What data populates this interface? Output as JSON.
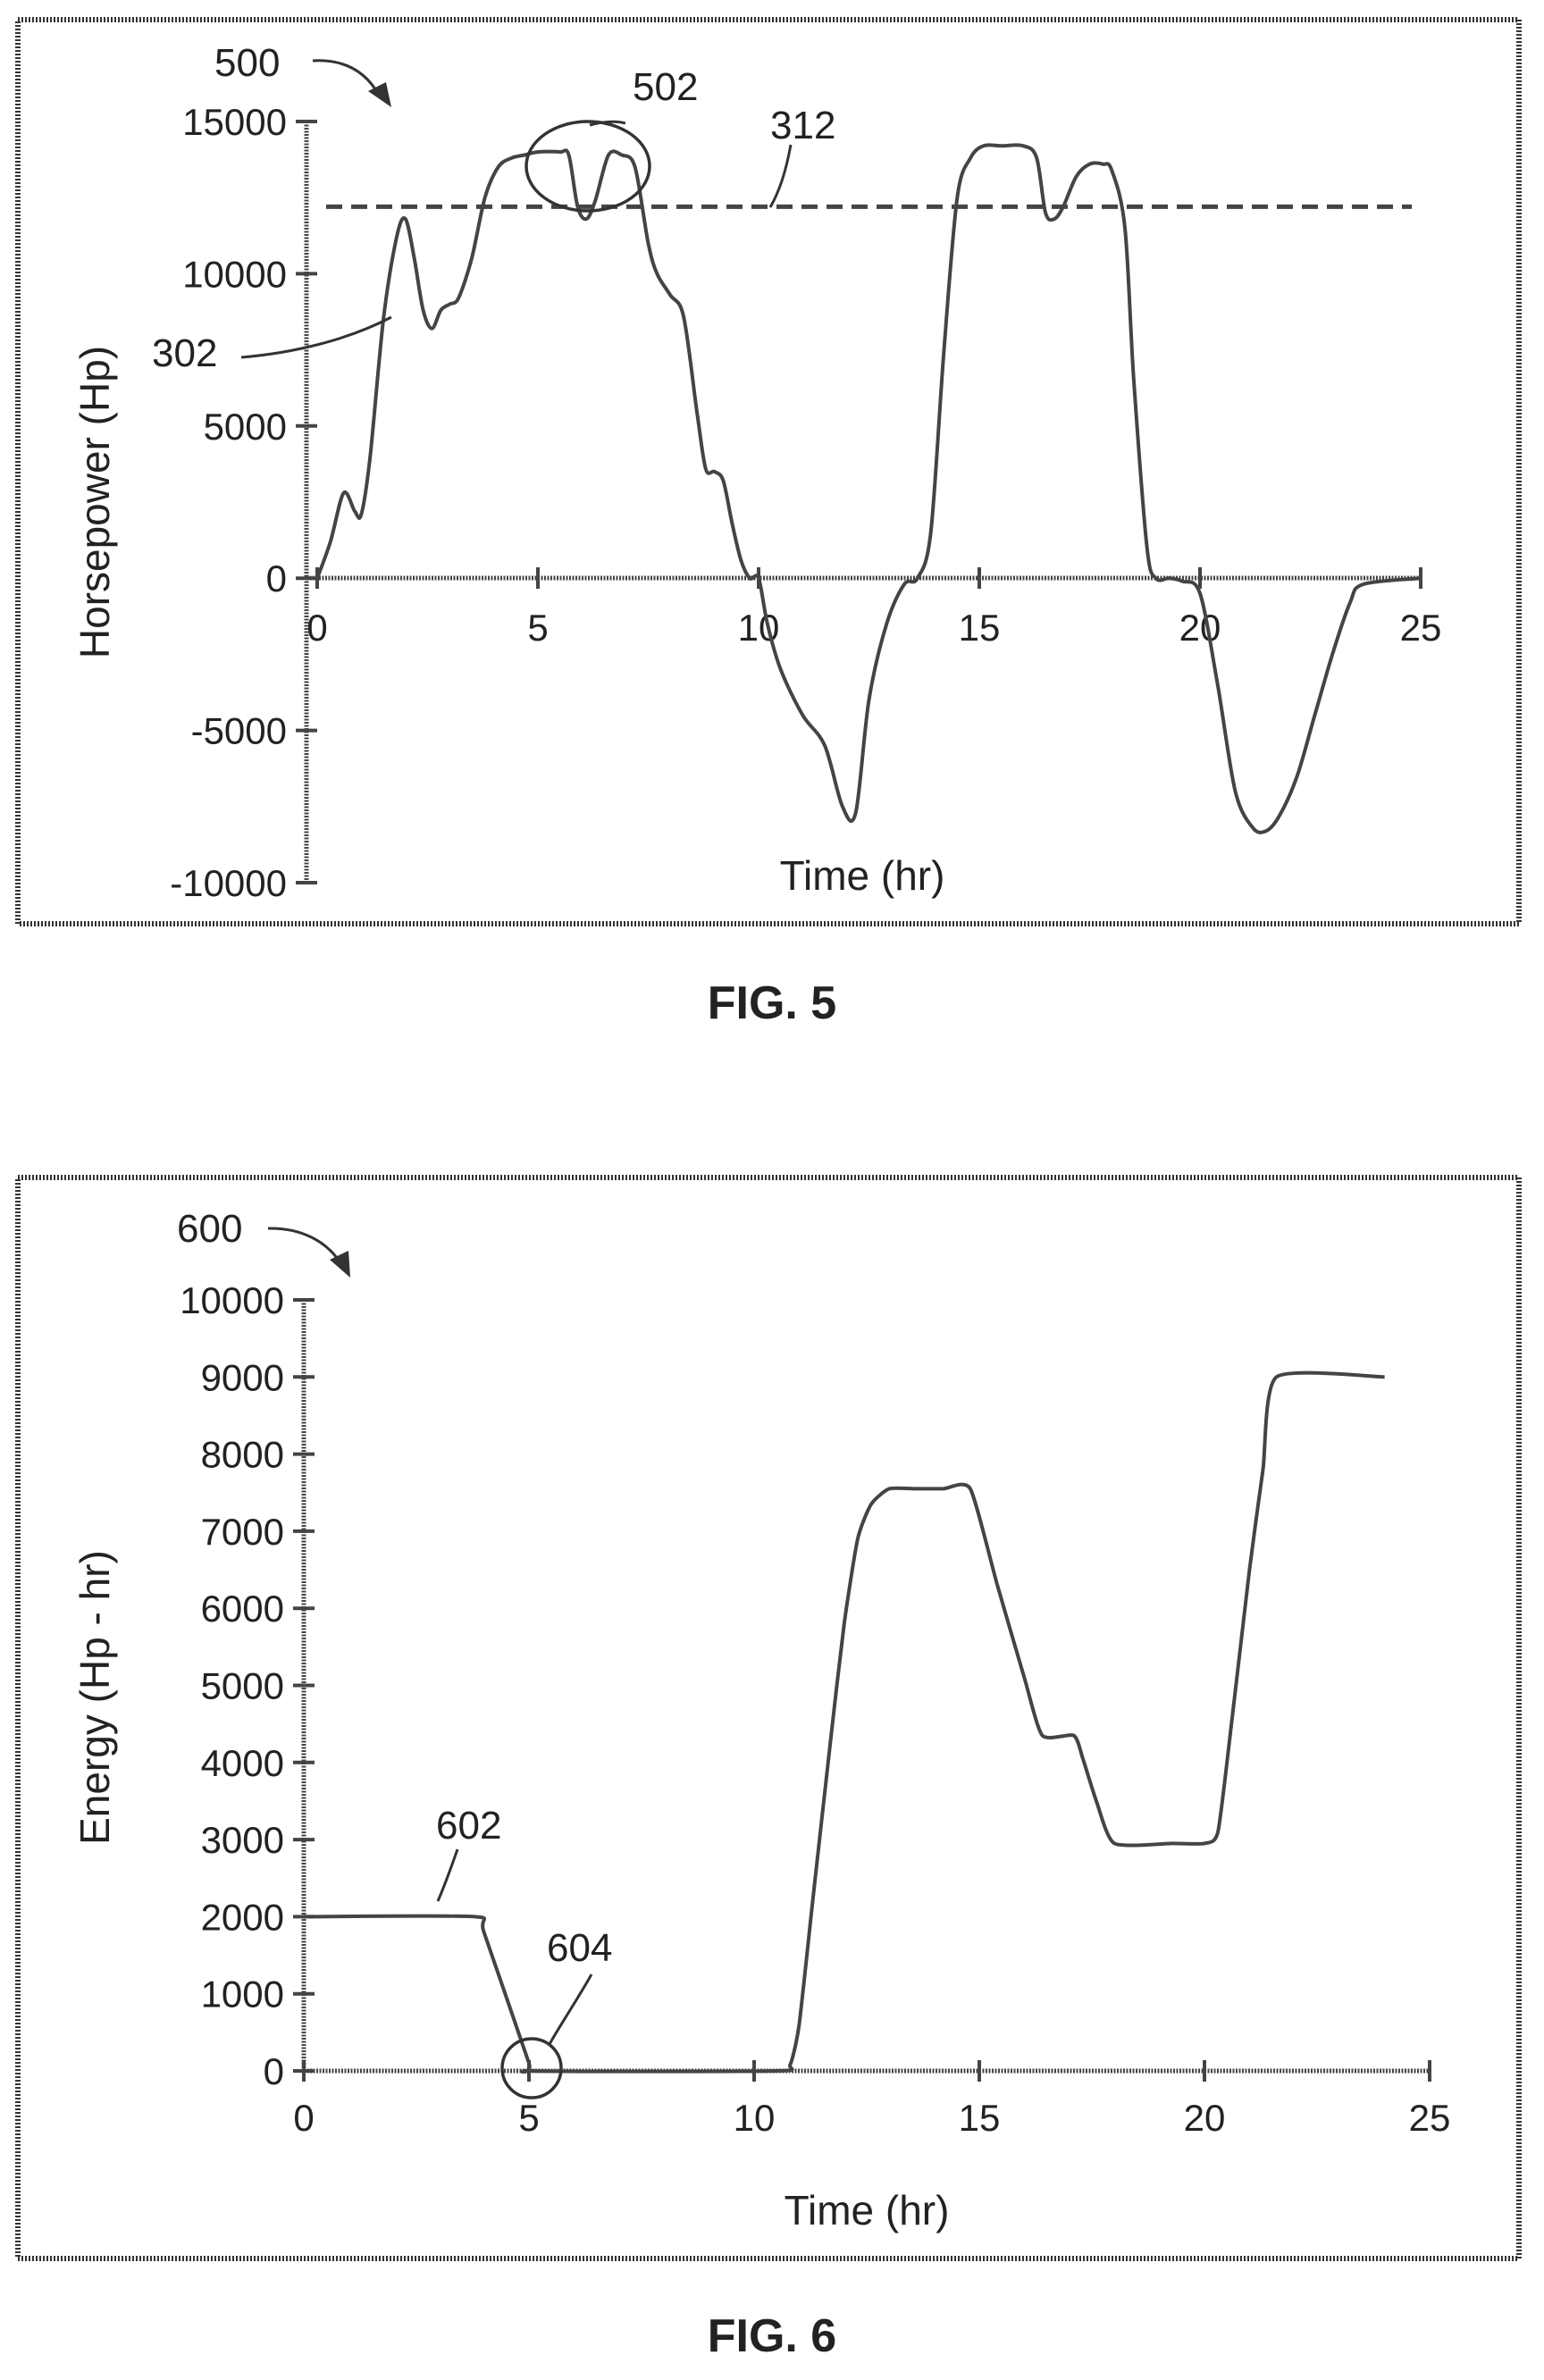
{
  "chart_data": [
    {
      "type": "line",
      "caption": "FIG. 5",
      "ref": "500",
      "xlabel": "Time (hr)",
      "ylabel": "Horsepower (Hp)",
      "xlim": [
        0,
        25
      ],
      "ylim": [
        -10000,
        15000
      ],
      "xticks": [
        0,
        5,
        10,
        15,
        20,
        25
      ],
      "yticks": [
        -10000,
        -5000,
        0,
        5000,
        10000,
        15000
      ],
      "threshold": {
        "label": "312",
        "y": 12200,
        "x_range": [
          0,
          25
        ]
      },
      "series": [
        {
          "label": "302",
          "x": [
            0,
            0.3,
            0.6,
            0.85,
            1.0,
            1.2,
            1.5,
            1.8,
            2.0,
            2.2,
            2.4,
            2.6,
            2.8,
            3.0,
            3.2,
            3.5,
            3.8,
            4.1,
            4.4,
            4.7,
            5.0,
            5.5,
            5.7,
            5.9,
            6.1,
            6.3,
            6.6,
            6.9,
            7.2,
            7.5,
            7.7,
            8.0,
            8.3,
            8.6,
            8.8,
            9.0,
            9.2,
            9.4,
            9.6,
            9.8,
            10.0,
            10.2,
            10.5,
            11.0,
            11.5,
            11.9,
            12.2,
            12.5,
            12.9,
            13.3,
            13.6,
            13.9,
            14.2,
            14.5,
            14.8,
            15.1,
            15.5,
            16.0,
            16.3,
            16.5,
            16.7,
            16.9,
            17.2,
            17.5,
            17.8,
            18.0,
            18.3,
            18.5,
            18.8,
            19.0,
            19.3,
            19.6,
            20.0,
            20.4,
            20.8,
            21.2,
            21.5,
            21.8,
            22.2,
            22.6,
            23.0,
            23.4,
            23.7,
            25.0
          ],
          "y": [
            0,
            1200,
            2800,
            2200,
            2100,
            4000,
            8500,
            11200,
            11800,
            10500,
            8800,
            8200,
            8800,
            9000,
            9200,
            10500,
            12500,
            13500,
            13800,
            13900,
            14000,
            14000,
            13900,
            12200,
            11800,
            12400,
            13900,
            13900,
            13500,
            11000,
            10000,
            9300,
            8600,
            5500,
            3600,
            3500,
            3200,
            1800,
            600,
            0,
            0,
            -1500,
            -3000,
            -4500,
            -5500,
            -7500,
            -7700,
            -4000,
            -1500,
            -200,
            0,
            1500,
            7500,
            12500,
            13800,
            14200,
            14200,
            14200,
            13800,
            12000,
            11800,
            12200,
            13200,
            13600,
            13600,
            13400,
            11500,
            6500,
            1000,
            0,
            0,
            -100,
            -500,
            -3500,
            -7000,
            -8200,
            -8300,
            -7800,
            -6500,
            -4500,
            -2500,
            -800,
            -200,
            0
          ]
        }
      ],
      "annotations": [
        {
          "label": "502",
          "shape": "circle"
        }
      ]
    },
    {
      "type": "line",
      "caption": "FIG. 6",
      "ref": "600",
      "xlabel": "Time (hr)",
      "ylabel": "Energy (Hp - hr)",
      "xlim": [
        0,
        25
      ],
      "ylim": [
        0,
        10000
      ],
      "xticks": [
        0,
        5,
        10,
        15,
        20,
        25
      ],
      "yticks": [
        0,
        1000,
        2000,
        3000,
        4000,
        5000,
        6000,
        7000,
        8000,
        9000,
        10000
      ],
      "series": [
        {
          "label": "602",
          "x": [
            0,
            3.8,
            4.0,
            5.0,
            5.1,
            10.5,
            10.8,
            11.0,
            11.3,
            11.7,
            12.0,
            12.3,
            12.6,
            13.0,
            13.6,
            14.2,
            14.8,
            15.4,
            16.0,
            16.4,
            17.1,
            17.3,
            17.6,
            18.0,
            19.3,
            20.0,
            20.3,
            20.6,
            21.0,
            21.3,
            21.6,
            24.0
          ],
          "y": [
            2000,
            2000,
            1800,
            100,
            0,
            0,
            80,
            600,
            2200,
            4300,
            5800,
            6900,
            7350,
            7550,
            7550,
            7550,
            7550,
            6300,
            5100,
            4350,
            4350,
            4050,
            3500,
            2950,
            2950,
            2950,
            3100,
            4500,
            6500,
            7800,
            9000,
            9000
          ]
        }
      ],
      "annotations": [
        {
          "label": "604",
          "shape": "circle"
        }
      ]
    }
  ]
}
